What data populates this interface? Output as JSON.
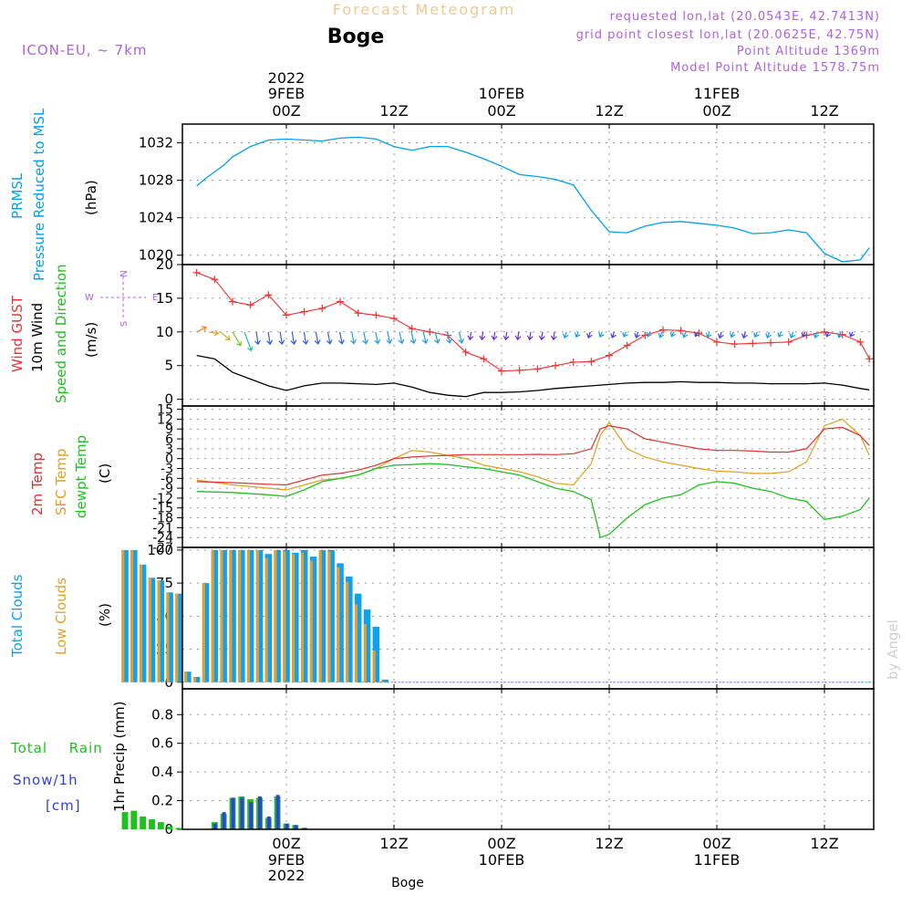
{
  "header": {
    "title": "Forecast Meteogram",
    "location": "Boge",
    "model": "ICON-EU, ~ 7km",
    "requested": "requested lon,lat (20.0543E, 42.7413N)",
    "closest": "grid point closest lon,lat (20.0625E, 42.75N)",
    "altitude": "Point Altitude 1369m",
    "model_altitude": "Model Point Altitude 1578.75m",
    "footer_location": "Boge",
    "watermark": "by Angel"
  },
  "time_axis": {
    "top_year": "2022",
    "top_dates": [
      "9FEB",
      "10FEB",
      "11FEB"
    ],
    "hours": [
      "00Z",
      "12Z",
      "00Z",
      "12Z",
      "00Z",
      "12Z"
    ],
    "bottom_dates": [
      "9FEB",
      "10FEB",
      "11FEB"
    ],
    "bottom_year": "2022"
  },
  "colors": {
    "pressure": "#00a0f0",
    "gust": "#f03030",
    "wind": "#000000",
    "temp2m": "#e03030",
    "sfc": "#e0a020",
    "dewpt": "#20c020",
    "total_clouds": "#10a0f0",
    "low_clouds": "#e0a030",
    "rain": "#20c020",
    "snow": "#3040e0",
    "purple": "#b060e0"
  },
  "chart_data": [
    {
      "type": "line",
      "title": "PRMSL Pressure Reduced to MSL",
      "ylabel": "(hPa)",
      "series_label_1": "PRMSL",
      "series_label_2": "Pressure Reduced to MSL",
      "ylim": [
        1019,
        1034
      ],
      "yticks": [
        1020,
        1024,
        1028,
        1032
      ],
      "tick_labels": [
        "1020",
        "1024",
        "1028",
        "1032"
      ],
      "x_hours": [
        -10,
        -9,
        -8,
        -7,
        -6,
        -4,
        -2,
        0,
        2,
        4,
        6,
        8,
        10,
        12,
        14,
        16,
        18,
        20,
        22,
        24,
        26,
        28,
        30,
        32,
        34,
        36,
        38,
        40,
        42,
        44,
        46,
        48,
        50,
        52,
        54,
        56,
        58,
        60,
        62,
        64,
        65
      ],
      "values": [
        1027.4,
        1028.2,
        1028.9,
        1029.6,
        1030.5,
        1031.6,
        1032.3,
        1032.4,
        1032.3,
        1032.2,
        1032.5,
        1032.6,
        1032.4,
        1031.6,
        1031.2,
        1031.6,
        1031.6,
        1031.0,
        1030.3,
        1029.5,
        1028.6,
        1028.4,
        1028.1,
        1027.5,
        1024.8,
        1022.5,
        1022.4,
        1023.1,
        1023.5,
        1023.6,
        1023.4,
        1023.2,
        1022.9,
        1022.3,
        1022.4,
        1022.7,
        1022.4,
        1020.2,
        1019.3,
        1019.5,
        1020.8
      ]
    },
    {
      "type": "line",
      "title": "Wind GUST 10m Wind Speed and Direction",
      "ylabel": "(m/s)",
      "label_gust": "Wind GUST",
      "label_wind": "10m Wind",
      "label_speed": "Speed and Direction",
      "compass": [
        "N",
        "W",
        "E",
        "S"
      ],
      "ylim": [
        -1,
        20
      ],
      "yticks": [
        0,
        5,
        10,
        15,
        20
      ],
      "tick_labels": [
        "0",
        "5",
        "10",
        "15",
        "20"
      ],
      "x_hours": [
        -10,
        -8,
        -6,
        -4,
        -2,
        0,
        2,
        4,
        6,
        8,
        10,
        12,
        14,
        16,
        18,
        20,
        22,
        24,
        26,
        28,
        30,
        32,
        34,
        36,
        38,
        40,
        42,
        44,
        46,
        48,
        50,
        52,
        54,
        56,
        58,
        60,
        62,
        64,
        65
      ],
      "gust": [
        18.8,
        17.8,
        14.5,
        14.0,
        15.5,
        12.5,
        13.0,
        13.5,
        14.5,
        12.8,
        12.5,
        12.0,
        10.5,
        10.0,
        9.5,
        7.0,
        6.0,
        4.2,
        4.3,
        4.5,
        5.0,
        5.5,
        5.6,
        6.5,
        8.0,
        9.5,
        10.3,
        10.2,
        9.8,
        8.5,
        8.2,
        8.3,
        8.4,
        8.5,
        9.5,
        10.0,
        9.6,
        8.5,
        6.0
      ],
      "wind": [
        6.5,
        6.0,
        4.0,
        3.0,
        2.0,
        1.3,
        2.0,
        2.4,
        2.4,
        2.3,
        2.2,
        2.4,
        1.8,
        1.0,
        0.6,
        0.4,
        1.0,
        1.0,
        1.1,
        1.3,
        1.6,
        1.8,
        2.0,
        2.2,
        2.4,
        2.5,
        2.5,
        2.6,
        2.5,
        2.5,
        2.4,
        2.4,
        2.3,
        2.3,
        2.3,
        2.4,
        2.1,
        1.6,
        1.4
      ]
    },
    {
      "type": "line",
      "title": "2m Temp SFC Temp dewpt Temp",
      "ylabel": "(C)",
      "label_2m": "2m Temp",
      "label_sfc": "SFC Temp",
      "label_dew": "dewpt Temp",
      "ylim": [
        -27,
        16
      ],
      "yticks": [
        15,
        12,
        9,
        6,
        3,
        0,
        -3,
        -6,
        -9,
        -12,
        -15,
        -18,
        -21,
        -24,
        -27
      ],
      "tick_labels": [
        "15",
        "12",
        "9",
        "6",
        "3",
        "0",
        "-3",
        "-6",
        "-9",
        "-12",
        "-15",
        "-18",
        "-21",
        "-24",
        "-27"
      ],
      "x_hours": [
        -10,
        -6,
        -2,
        0,
        2,
        4,
        6,
        8,
        10,
        12,
        14,
        16,
        18,
        20,
        22,
        24,
        26,
        28,
        30,
        32,
        34,
        35,
        36,
        38,
        40,
        42,
        44,
        46,
        48,
        50,
        52,
        54,
        56,
        58,
        60,
        62,
        64,
        65
      ],
      "t2m": [
        -7,
        -7.3,
        -7.8,
        -8,
        -6.5,
        -5,
        -4.5,
        -3.5,
        -2,
        0,
        0.5,
        0.8,
        1.0,
        1.2,
        1.2,
        1.2,
        1.2,
        1.3,
        1.2,
        1.5,
        3,
        9,
        10,
        9,
        6,
        5,
        4,
        3,
        2.5,
        2.5,
        2.3,
        2.0,
        2.0,
        3,
        9,
        9.5,
        7,
        4
      ],
      "sfc": [
        -6.5,
        -8,
        -9,
        -9.5,
        -8,
        -6.5,
        -6.0,
        -5.0,
        -3,
        0,
        2.5,
        2.0,
        1.0,
        0,
        -2.0,
        -3.0,
        -4.0,
        -5.5,
        -7.5,
        -8.0,
        -1.5,
        7,
        11,
        3.0,
        0.5,
        -1.0,
        -2.0,
        -3.0,
        -3.8,
        -4.0,
        -4.5,
        -4.5,
        -4.0,
        -1.0,
        10,
        12,
        7,
        1
      ],
      "dewpt": [
        -10,
        -10.3,
        -11,
        -11.5,
        -9.5,
        -7.0,
        -6.0,
        -5.0,
        -3.0,
        -2.0,
        -1.8,
        -1.5,
        -1.8,
        -2.5,
        -3.0,
        -4.0,
        -5.0,
        -7.0,
        -9.0,
        -10.0,
        -12.5,
        -24,
        -23,
        -18,
        -14,
        -12,
        -11,
        -8.0,
        -7.0,
        -7.5,
        -9.0,
        -10.0,
        -12.0,
        -13.0,
        -18.5,
        -17.5,
        -15.5,
        -12.0
      ]
    },
    {
      "type": "bar",
      "title": "Total Clouds Low Clouds",
      "ylabel": "(%)",
      "label_total": "Total Clouds",
      "label_low": "Low Clouds",
      "ylim": [
        -5,
        102
      ],
      "yticks": [
        0,
        25,
        50,
        75,
        100
      ],
      "tick_labels": [
        "0",
        "25",
        "50",
        "75",
        "100"
      ],
      "x_hours": [
        -18,
        -17,
        -16,
        -15,
        -14,
        -13,
        -12,
        -11,
        -10,
        -9,
        -8,
        -7,
        -6,
        -5,
        -4,
        -3,
        -2,
        -1,
        0,
        1,
        2,
        3,
        4,
        5,
        6,
        7,
        8,
        9,
        10,
        11,
        12,
        13,
        14,
        15,
        16,
        17,
        18,
        19,
        20,
        21,
        22,
        23
      ],
      "total": [
        100,
        100,
        89,
        79,
        77,
        68,
        67,
        8,
        4,
        75,
        100,
        100,
        100,
        100,
        100,
        100,
        97,
        100,
        100,
        98,
        100,
        95,
        100,
        100,
        90,
        80,
        67,
        55,
        42,
        2,
        0,
        0,
        0,
        0,
        0,
        0,
        0,
        0,
        0,
        0,
        0,
        0
      ],
      "low": [
        100,
        100,
        89,
        79,
        77,
        68,
        67,
        8,
        4,
        75,
        100,
        100,
        100,
        100,
        100,
        100,
        94,
        100,
        99,
        97,
        98,
        92,
        100,
        99,
        87,
        76,
        59,
        44,
        24,
        1,
        0,
        0,
        0,
        0,
        0,
        0,
        0,
        0,
        0,
        0,
        0,
        0
      ]
    },
    {
      "type": "bar",
      "title": "Total Rain Snow/1h",
      "ylabel": "1hr Precip (mm)",
      "label_rain": "Total Rain",
      "label_snow": "Snow/1h",
      "label_unit": "[cm]",
      "ylim": [
        0,
        0.98
      ],
      "yticks": [
        0,
        0.2,
        0.4,
        0.6,
        0.8
      ],
      "tick_labels": [
        "0",
        "0.2",
        "0.4",
        "0.6",
        "0.8"
      ],
      "x_hours": [
        -18,
        -17,
        -16,
        -15,
        -14,
        -13,
        -12,
        -11,
        -10,
        -9,
        -8,
        -7,
        -6,
        -5,
        -4,
        -3,
        -2,
        -1,
        0,
        1,
        2,
        3,
        4,
        5,
        6,
        7,
        8
      ],
      "rain": [
        0.12,
        0.13,
        0.09,
        0.07,
        0.05,
        0.02,
        0.01,
        0,
        0,
        0,
        0.05,
        0.11,
        0.22,
        0.23,
        0.21,
        0.22,
        0.08,
        0.23,
        0.04,
        0.03,
        0.01,
        0,
        0,
        0,
        0,
        0,
        0
      ],
      "snow": [
        0,
        0,
        0,
        0,
        0,
        0,
        0,
        0,
        0,
        0,
        0.04,
        0.12,
        0.22,
        0.22,
        0.19,
        0.23,
        0.09,
        0.24,
        0.04,
        0.03,
        0.01,
        0,
        0,
        0,
        0,
        0,
        0
      ]
    }
  ]
}
